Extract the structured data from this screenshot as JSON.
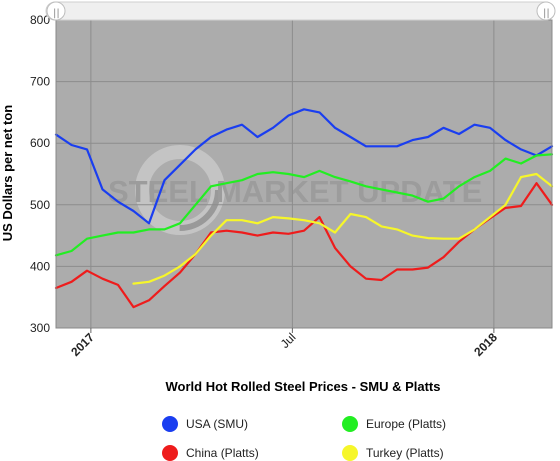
{
  "chart_data": {
    "type": "line",
    "title": "World Hot Rolled Steel Prices - SMU & Platts",
    "ylabel": "US Dollars per net ton",
    "xlabel": "",
    "ylim": [
      300,
      800
    ],
    "yticks": [
      300,
      400,
      500,
      600,
      700,
      800
    ],
    "xticks": [
      {
        "label": "2017",
        "x": 4.5,
        "bold": true
      },
      {
        "label": "Jul",
        "x": 30.5,
        "bold": false
      },
      {
        "label": "2018",
        "x": 56.5,
        "bold": true
      }
    ],
    "grid": true,
    "legend_position": "bottom",
    "watermark": "STEEL MARKET UPDATE",
    "series": [
      {
        "name": "USA (SMU)",
        "color": "#1a3ef0",
        "x": [
          0,
          2,
          4,
          6,
          8,
          10,
          12,
          14,
          16,
          18,
          20,
          22,
          24,
          26,
          28,
          30,
          32,
          34,
          36,
          38,
          40,
          42,
          44,
          46,
          48,
          50,
          52,
          54,
          56,
          58,
          60,
          62,
          64
        ],
        "y": [
          614,
          597,
          590,
          525,
          505,
          490,
          470,
          540,
          565,
          590,
          610,
          622,
          630,
          610,
          625,
          645,
          655,
          650,
          625,
          610,
          595,
          595,
          595,
          605,
          610,
          625,
          615,
          630,
          625,
          605,
          590,
          580,
          595
        ]
      },
      {
        "name": "China (Platts)",
        "color": "#ee1c1c",
        "x": [
          0,
          2,
          4,
          6,
          8,
          10,
          12,
          14,
          16,
          18,
          20,
          22,
          24,
          26,
          28,
          30,
          32,
          34,
          36,
          38,
          40,
          42,
          44,
          46,
          48,
          50,
          52,
          54,
          56,
          58,
          60,
          62,
          64
        ],
        "y": [
          365,
          375,
          393,
          380,
          370,
          334,
          345,
          368,
          390,
          420,
          455,
          458,
          455,
          450,
          455,
          453,
          458,
          480,
          430,
          400,
          380,
          378,
          395,
          395,
          398,
          415,
          440,
          460,
          478,
          495,
          498,
          535,
          500
        ]
      },
      {
        "name": "Europe (Platts)",
        "color": "#22ee22",
        "x": [
          0,
          2,
          4,
          6,
          8,
          10,
          12,
          14,
          16,
          18,
          20,
          22,
          24,
          26,
          28,
          30,
          32,
          34,
          36,
          38,
          40,
          42,
          44,
          46,
          48,
          50,
          52,
          54,
          56,
          58,
          60,
          62,
          64
        ],
        "y": [
          418,
          425,
          445,
          450,
          455,
          455,
          460,
          460,
          470,
          500,
          530,
          535,
          540,
          550,
          553,
          550,
          545,
          555,
          545,
          538,
          530,
          525,
          520,
          515,
          505,
          510,
          530,
          545,
          555,
          575,
          567,
          580,
          582
        ]
      },
      {
        "name": "Turkey (Platts)",
        "color": "#f6f62a",
        "x": [
          0,
          2,
          4,
          6,
          8,
          10,
          12,
          14,
          16,
          18,
          20,
          22,
          24,
          26,
          28,
          30,
          32,
          34,
          36,
          38,
          40,
          42,
          44,
          46,
          48,
          50,
          52,
          54,
          56,
          58,
          60,
          62,
          64
        ],
        "y": [
          null,
          null,
          null,
          null,
          null,
          372,
          375,
          385,
          400,
          420,
          450,
          475,
          475,
          470,
          480,
          478,
          475,
          470,
          455,
          485,
          480,
          465,
          460,
          450,
          446,
          445,
          445,
          460,
          480,
          500,
          545,
          550,
          530
        ]
      }
    ]
  },
  "legend": {
    "items": [
      {
        "label": "USA (SMU)",
        "color": "#1a3ef0"
      },
      {
        "label": "Europe (Platts)",
        "color": "#22ee22"
      },
      {
        "label": "China (Platts)",
        "color": "#ee1c1c"
      },
      {
        "label": "Turkey (Platts)",
        "color": "#f6f62a"
      }
    ]
  }
}
